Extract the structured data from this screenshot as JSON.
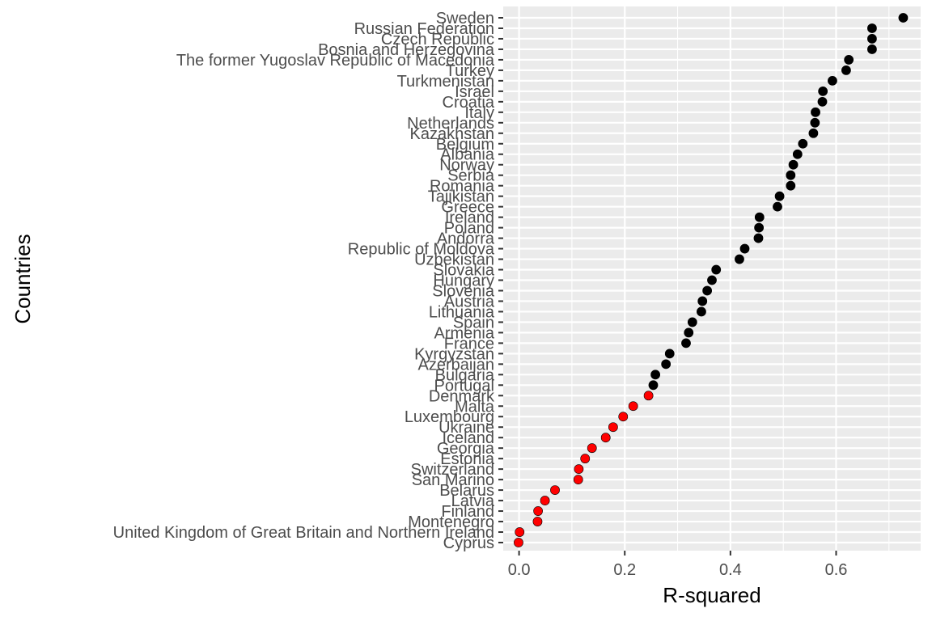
{
  "chart_data": {
    "type": "scatter",
    "xlabel": "R-squared",
    "ylabel": "Countries",
    "xlim": [
      -0.03,
      0.76
    ],
    "x_ticks": [
      0.0,
      0.2,
      0.4,
      0.6
    ],
    "x_tick_labels": [
      "0.0",
      "0.2",
      "0.4",
      "0.6"
    ],
    "grid": true,
    "legend": "none",
    "colors": {
      "panel": "#ebebeb",
      "grid": "#ffffff",
      "high": "#000000",
      "low": "#ff0000",
      "tick_label": "#4d4d4d",
      "tick": "#333333"
    },
    "points": [
      {
        "country": "Sweden",
        "value": 0.727,
        "group": "high"
      },
      {
        "country": "Russian Federation",
        "value": 0.668,
        "group": "high"
      },
      {
        "country": "Czech Republic",
        "value": 0.668,
        "group": "high"
      },
      {
        "country": "Bosnia and Herzegovina",
        "value": 0.668,
        "group": "high"
      },
      {
        "country": "The former Yugoslav Republic of Macedonia",
        "value": 0.624,
        "group": "high"
      },
      {
        "country": "Turkey",
        "value": 0.619,
        "group": "high"
      },
      {
        "country": "Turkmenistan",
        "value": 0.593,
        "group": "high"
      },
      {
        "country": "Israel",
        "value": 0.575,
        "group": "high"
      },
      {
        "country": "Croatia",
        "value": 0.574,
        "group": "high"
      },
      {
        "country": "Italy",
        "value": 0.561,
        "group": "high"
      },
      {
        "country": "Netherlands",
        "value": 0.56,
        "group": "high"
      },
      {
        "country": "Kazakhstan",
        "value": 0.557,
        "group": "high"
      },
      {
        "country": "Belgium",
        "value": 0.537,
        "group": "high"
      },
      {
        "country": "Albania",
        "value": 0.527,
        "group": "high"
      },
      {
        "country": "Norway",
        "value": 0.519,
        "group": "high"
      },
      {
        "country": "Serbia",
        "value": 0.514,
        "group": "high"
      },
      {
        "country": "Romania",
        "value": 0.514,
        "group": "high"
      },
      {
        "country": "Tajikistan",
        "value": 0.493,
        "group": "high"
      },
      {
        "country": "Greece",
        "value": 0.489,
        "group": "high"
      },
      {
        "country": "Ireland",
        "value": 0.455,
        "group": "high"
      },
      {
        "country": "Poland",
        "value": 0.454,
        "group": "high"
      },
      {
        "country": "Andorra",
        "value": 0.453,
        "group": "high"
      },
      {
        "country": "Republic of Moldova",
        "value": 0.427,
        "group": "high"
      },
      {
        "country": "Uzbekistan",
        "value": 0.417,
        "group": "high"
      },
      {
        "country": "Slovakia",
        "value": 0.373,
        "group": "high"
      },
      {
        "country": "Hungary",
        "value": 0.365,
        "group": "high"
      },
      {
        "country": "Slovenia",
        "value": 0.356,
        "group": "high"
      },
      {
        "country": "Austria",
        "value": 0.347,
        "group": "high"
      },
      {
        "country": "Lithuania",
        "value": 0.345,
        "group": "high"
      },
      {
        "country": "Spain",
        "value": 0.328,
        "group": "high"
      },
      {
        "country": "Armenia",
        "value": 0.321,
        "group": "high"
      },
      {
        "country": "France",
        "value": 0.316,
        "group": "high"
      },
      {
        "country": "Kyrgyzstan",
        "value": 0.285,
        "group": "high"
      },
      {
        "country": "Azerbaijan",
        "value": 0.278,
        "group": "high"
      },
      {
        "country": "Bulgaria",
        "value": 0.258,
        "group": "high"
      },
      {
        "country": "Portugal",
        "value": 0.254,
        "group": "high"
      },
      {
        "country": "Denmark",
        "value": 0.245,
        "group": "low"
      },
      {
        "country": "Malta",
        "value": 0.216,
        "group": "low"
      },
      {
        "country": "Luxembourg",
        "value": 0.197,
        "group": "low"
      },
      {
        "country": "Ukraine",
        "value": 0.178,
        "group": "low"
      },
      {
        "country": "Iceland",
        "value": 0.164,
        "group": "low"
      },
      {
        "country": "Georgia",
        "value": 0.138,
        "group": "low"
      },
      {
        "country": "Estonia",
        "value": 0.125,
        "group": "low"
      },
      {
        "country": "Switzerland",
        "value": 0.113,
        "group": "low"
      },
      {
        "country": "San Marino",
        "value": 0.112,
        "group": "low"
      },
      {
        "country": "Belarus",
        "value": 0.068,
        "group": "low"
      },
      {
        "country": "Latvia",
        "value": 0.049,
        "group": "low"
      },
      {
        "country": "Finland",
        "value": 0.036,
        "group": "low"
      },
      {
        "country": "Montenegro",
        "value": 0.035,
        "group": "low"
      },
      {
        "country": "United Kingdom of Great Britain and Northern Ireland",
        "value": 0.001,
        "group": "low"
      },
      {
        "country": "Cyprus",
        "value": -0.001,
        "group": "low"
      }
    ]
  }
}
